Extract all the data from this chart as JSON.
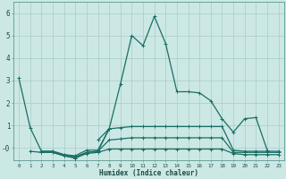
{
  "xlabel": "Humidex (Indice chaleur)",
  "bg_color": "#cce8e5",
  "grid_color": "#afd0cd",
  "line_color": "#1a6e65",
  "xlim": [
    -0.5,
    23.5
  ],
  "ylim": [
    -0.55,
    6.5
  ],
  "yticks": [
    0,
    1,
    2,
    3,
    4,
    5,
    6
  ],
  "ytick_labels": [
    "-0",
    "1",
    "2",
    "3",
    "4",
    "5",
    "6"
  ],
  "xticks": [
    0,
    1,
    2,
    3,
    4,
    5,
    6,
    7,
    8,
    9,
    10,
    11,
    12,
    13,
    14,
    15,
    16,
    17,
    18,
    19,
    20,
    21,
    22,
    23
  ],
  "line1_x": [
    0,
    1,
    2,
    3,
    4,
    5,
    6,
    7,
    8,
    9,
    10,
    11,
    12,
    13,
    14,
    15,
    16,
    17,
    18,
    19,
    20,
    21,
    22
  ],
  "line1_y": [
    3.1,
    0.9,
    -0.15,
    -0.15,
    -0.3,
    -0.35,
    -0.1,
    -0.1,
    0.85,
    2.85,
    5.0,
    4.55,
    5.85,
    4.65,
    2.5,
    2.5,
    2.45,
    2.1,
    1.3,
    0.7,
    1.3,
    1.35,
    -0.1
  ],
  "line2_x": [
    1,
    2,
    3,
    4,
    5,
    6,
    7,
    8
  ],
  "line2_y": [
    -0.15,
    -0.2,
    -0.2,
    -0.35,
    -0.45,
    -0.2,
    -0.15,
    0.85
  ],
  "line3_x": [
    7,
    8,
    9,
    10,
    11,
    12,
    13,
    14,
    15,
    16,
    17,
    18,
    19,
    20,
    21,
    22,
    23
  ],
  "line3_y": [
    0.35,
    0.85,
    0.9,
    0.95,
    0.95,
    0.95,
    0.95,
    0.95,
    0.95,
    0.95,
    0.95,
    0.95,
    -0.1,
    -0.15,
    -0.15,
    -0.15,
    -0.15
  ],
  "line4_x": [
    2,
    3,
    4,
    5,
    6,
    7,
    8,
    9,
    10,
    11,
    12,
    13,
    14,
    15,
    16,
    17,
    18,
    19,
    20,
    21,
    22,
    23
  ],
  "line4_y": [
    -0.15,
    -0.15,
    -0.3,
    -0.4,
    -0.2,
    -0.15,
    0.35,
    0.4,
    0.45,
    0.45,
    0.45,
    0.45,
    0.45,
    0.45,
    0.45,
    0.45,
    0.45,
    -0.2,
    -0.2,
    -0.2,
    -0.2,
    -0.2
  ],
  "line5_x": [
    2,
    3,
    4,
    5,
    6,
    7,
    8,
    9,
    10,
    11,
    12,
    13,
    14,
    15,
    16,
    17,
    18,
    19,
    20,
    21,
    22,
    23
  ],
  "line5_y": [
    -0.2,
    -0.2,
    -0.35,
    -0.45,
    -0.25,
    -0.2,
    -0.05,
    -0.05,
    -0.05,
    -0.05,
    -0.05,
    -0.05,
    -0.05,
    -0.05,
    -0.05,
    -0.05,
    -0.05,
    -0.25,
    -0.3,
    -0.3,
    -0.3,
    -0.3
  ]
}
